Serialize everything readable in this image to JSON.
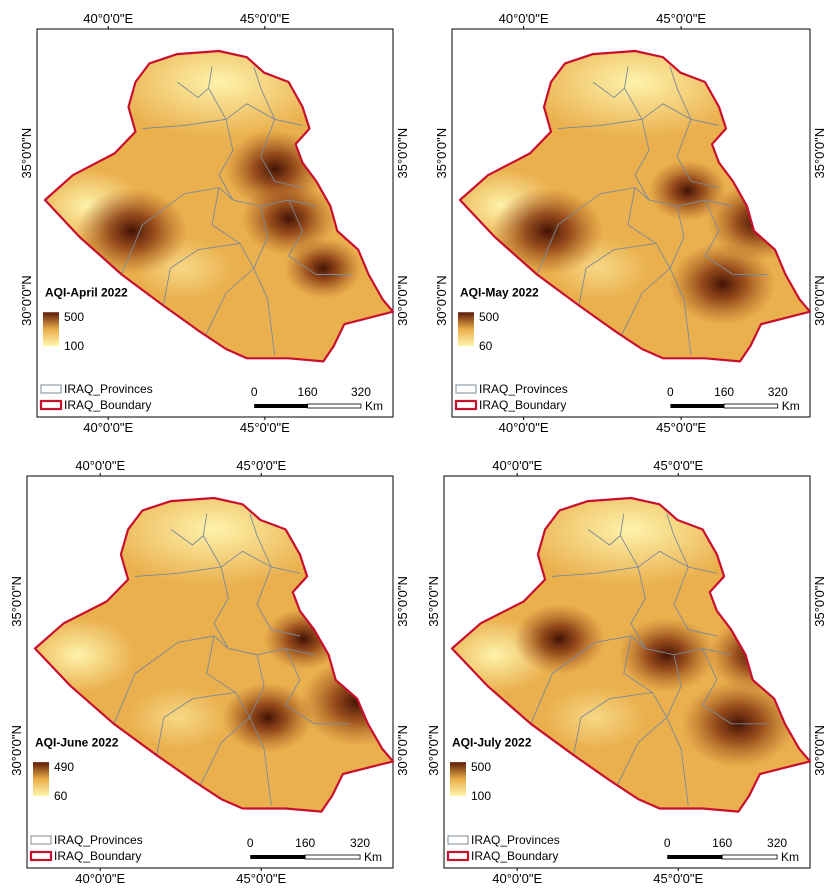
{
  "figure": {
    "panels": [
      {
        "title": "AQI-April 2022",
        "legend_max": "500",
        "legend_min": "100",
        "lon_labels": [
          "40°0'0\"E",
          "45°0'0\"E"
        ],
        "lat_labels": [
          "35°0'0\"N",
          "30°0'0\"N"
        ],
        "hotspots": [
          [
            0.16,
            0.12,
            0.9
          ],
          [
            0.2,
            -0.04,
            0.85
          ],
          [
            -0.25,
            -0.08,
            1.0
          ],
          [
            0.3,
            -0.2,
            0.7
          ]
        ]
      },
      {
        "title": "AQI-May 2022",
        "legend_max": "500",
        "legend_min": "60",
        "lon_labels": [
          "40°0'0\"E",
          "45°0'0\"E"
        ],
        "lat_labels": [
          "35°0'0\"N",
          "30°0'0\"N"
        ],
        "hotspots": [
          [
            -0.25,
            -0.08,
            1.0
          ],
          [
            0.25,
            -0.25,
            0.95
          ],
          [
            0.35,
            -0.05,
            0.9
          ],
          [
            0.15,
            0.05,
            0.7
          ]
        ]
      },
      {
        "title": "AQI-June 2022",
        "legend_max": "490",
        "legend_min": "60",
        "lon_labels": [
          "40°0'0\"E",
          "45°0'0\"E"
        ],
        "lat_labels": [
          "35°0'0\"N",
          "30°0'0\"N"
        ],
        "hotspots": [
          [
            0.4,
            -0.15,
            1.0
          ],
          [
            0.15,
            -0.2,
            0.8
          ],
          [
            0.25,
            0.05,
            0.7
          ]
        ]
      },
      {
        "title": "AQI-July 2022",
        "legend_max": "500",
        "legend_min": "100",
        "lon_labels": [
          "40°0'0\"E",
          "45°0'0\"E"
        ],
        "lat_labels": [
          "35°0'0\"N",
          "30°0'0\"N"
        ],
        "hotspots": [
          [
            0.3,
            -0.22,
            1.0
          ],
          [
            0.1,
            0.0,
            0.85
          ],
          [
            -0.2,
            0.05,
            0.8
          ],
          [
            0.35,
            0.0,
            0.85
          ]
        ]
      }
    ],
    "legend": {
      "provinces_label": "IRAQ_Provinces",
      "boundary_label": "IRAQ_Boundary"
    },
    "scalebar": {
      "ticks": [
        "0",
        "160",
        "320"
      ],
      "unit": "Km"
    },
    "colors": {
      "ramp_low": "#fff6b0",
      "ramp_mid": "#e9ad48",
      "ramp_high": "#5c1a08",
      "boundary": "#c8102e",
      "provinces": "#7a8a9a"
    }
  }
}
